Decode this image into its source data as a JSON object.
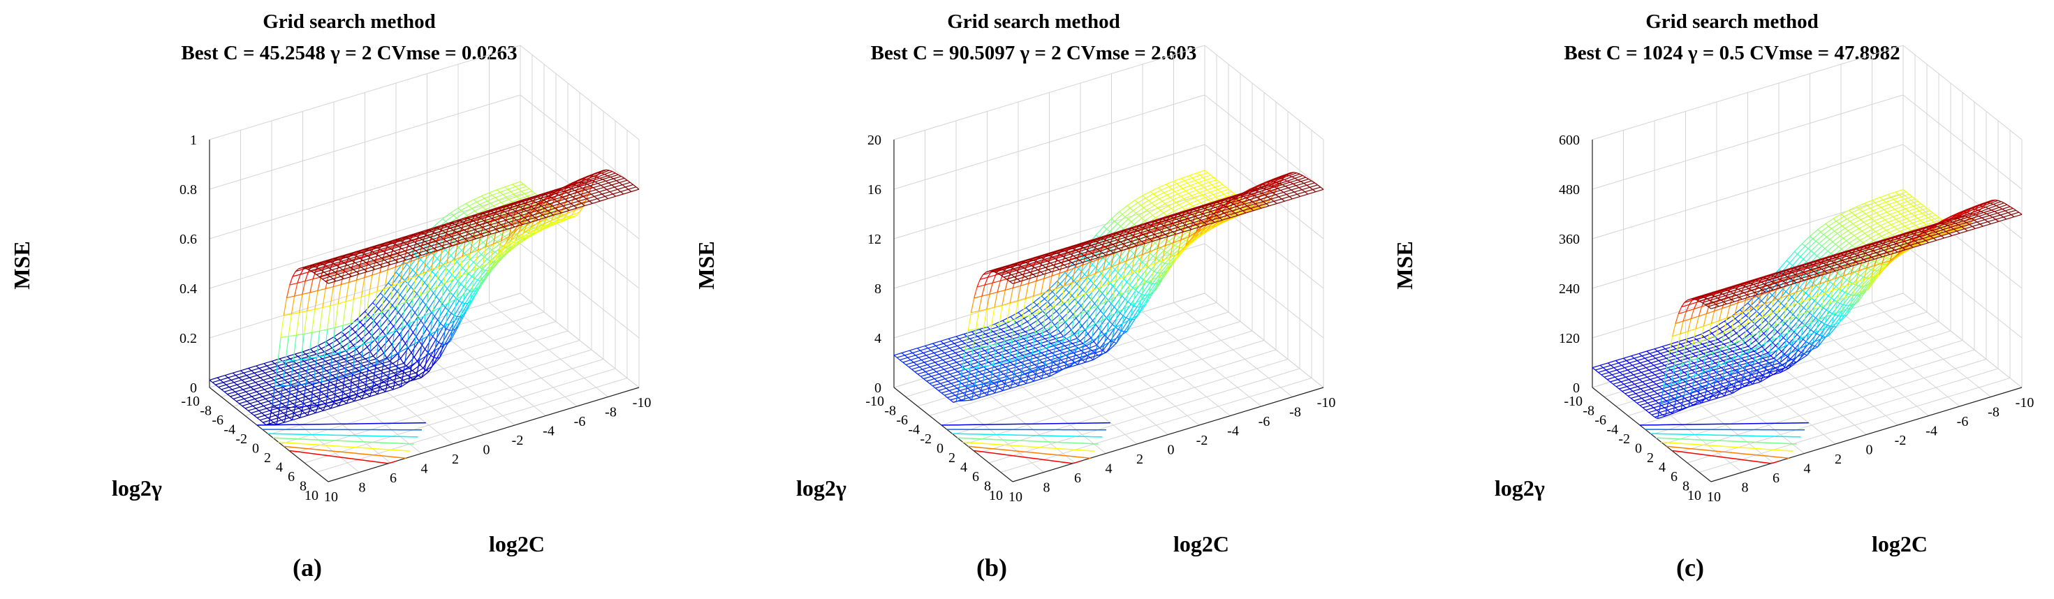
{
  "chart_data": [
    {
      "type": "surface",
      "title": "Grid search method",
      "subtitle": "Best C = 45.2548 γ = 2 CVmse = 0.0263",
      "xlabel": "log2C",
      "ylabel": "log2γ",
      "zlabel": "MSE",
      "panel_label": "(a)",
      "x_ticks": [
        "10",
        "8",
        "6",
        "4",
        "2",
        "0",
        "-2",
        "-4",
        "-6",
        "-8",
        "-10"
      ],
      "y_ticks": [
        "-10",
        "-8",
        "-6",
        "-4",
        "-2",
        "0",
        "2",
        "4",
        "6",
        "8",
        "10"
      ],
      "z_ticks": [
        "0",
        "0.2",
        "0.4",
        "0.6",
        "0.8",
        "1"
      ],
      "xlim": [
        -10,
        10
      ],
      "ylim": [
        -10,
        10
      ],
      "zlim": [
        0,
        1
      ],
      "best": {
        "C": 45.2548,
        "gamma": 2,
        "cv_mse": 0.0263
      },
      "surface_params": {
        "zmax": 0.8,
        "plateau_center": 1.5,
        "plateau_width": 1.1,
        "dip_depth": 0.85,
        "dip_C": 5.5,
        "dip_gamma": 1,
        "floor": 0.03
      }
    },
    {
      "type": "surface",
      "title": "Grid search method",
      "subtitle": "Best C = 90.5097 γ = 2 CVmse = 2.603",
      "xlabel": "log2C",
      "ylabel": "log2γ",
      "zlabel": "MSE",
      "panel_label": "(b)",
      "x_ticks": [
        "10",
        "8",
        "6",
        "4",
        "2",
        "0",
        "-2",
        "-4",
        "-6",
        "-8",
        "-10"
      ],
      "y_ticks": [
        "-10",
        "-8",
        "-6",
        "-4",
        "-2",
        "0",
        "2",
        "4",
        "6",
        "8",
        "10"
      ],
      "z_ticks": [
        "0",
        "4",
        "8",
        "12",
        "16",
        "20"
      ],
      "xlim": [
        -10,
        10
      ],
      "ylim": [
        -10,
        10
      ],
      "zlim": [
        0,
        20
      ],
      "best": {
        "C": 90.5097,
        "gamma": 2,
        "cv_mse": 2.603
      },
      "surface_params": {
        "zmax": 16,
        "plateau_center": 2,
        "plateau_width": 1.2,
        "dip_depth": 0.8,
        "dip_C": 6.5,
        "dip_gamma": 1,
        "floor": 2.6
      }
    },
    {
      "type": "surface",
      "title": "Grid search method",
      "subtitle": "Best C = 1024 γ = 0.5 CVmse = 47.8982",
      "xlabel": "log2C",
      "ylabel": "log2γ",
      "zlabel": "MSE",
      "panel_label": "(c)",
      "x_ticks": [
        "10",
        "8",
        "6",
        "4",
        "2",
        "0",
        "-2",
        "-4",
        "-6",
        "-8",
        "-10"
      ],
      "y_ticks": [
        "-10",
        "-8",
        "-6",
        "-4",
        "-2",
        "0",
        "2",
        "4",
        "6",
        "8",
        "10"
      ],
      "z_ticks": [
        "0",
        "120",
        "240",
        "360",
        "480",
        "600"
      ],
      "xlim": [
        -10,
        10
      ],
      "ylim": [
        -10,
        10
      ],
      "zlim": [
        0,
        600
      ],
      "best": {
        "C": 1024,
        "gamma": 0.5,
        "cv_mse": 47.8982
      },
      "surface_params": {
        "zmax": 420,
        "plateau_center": 2.5,
        "plateau_width": 1.3,
        "dip_depth": 0.85,
        "dip_C": 10,
        "dip_gamma": -1,
        "floor": 47.9
      }
    }
  ]
}
